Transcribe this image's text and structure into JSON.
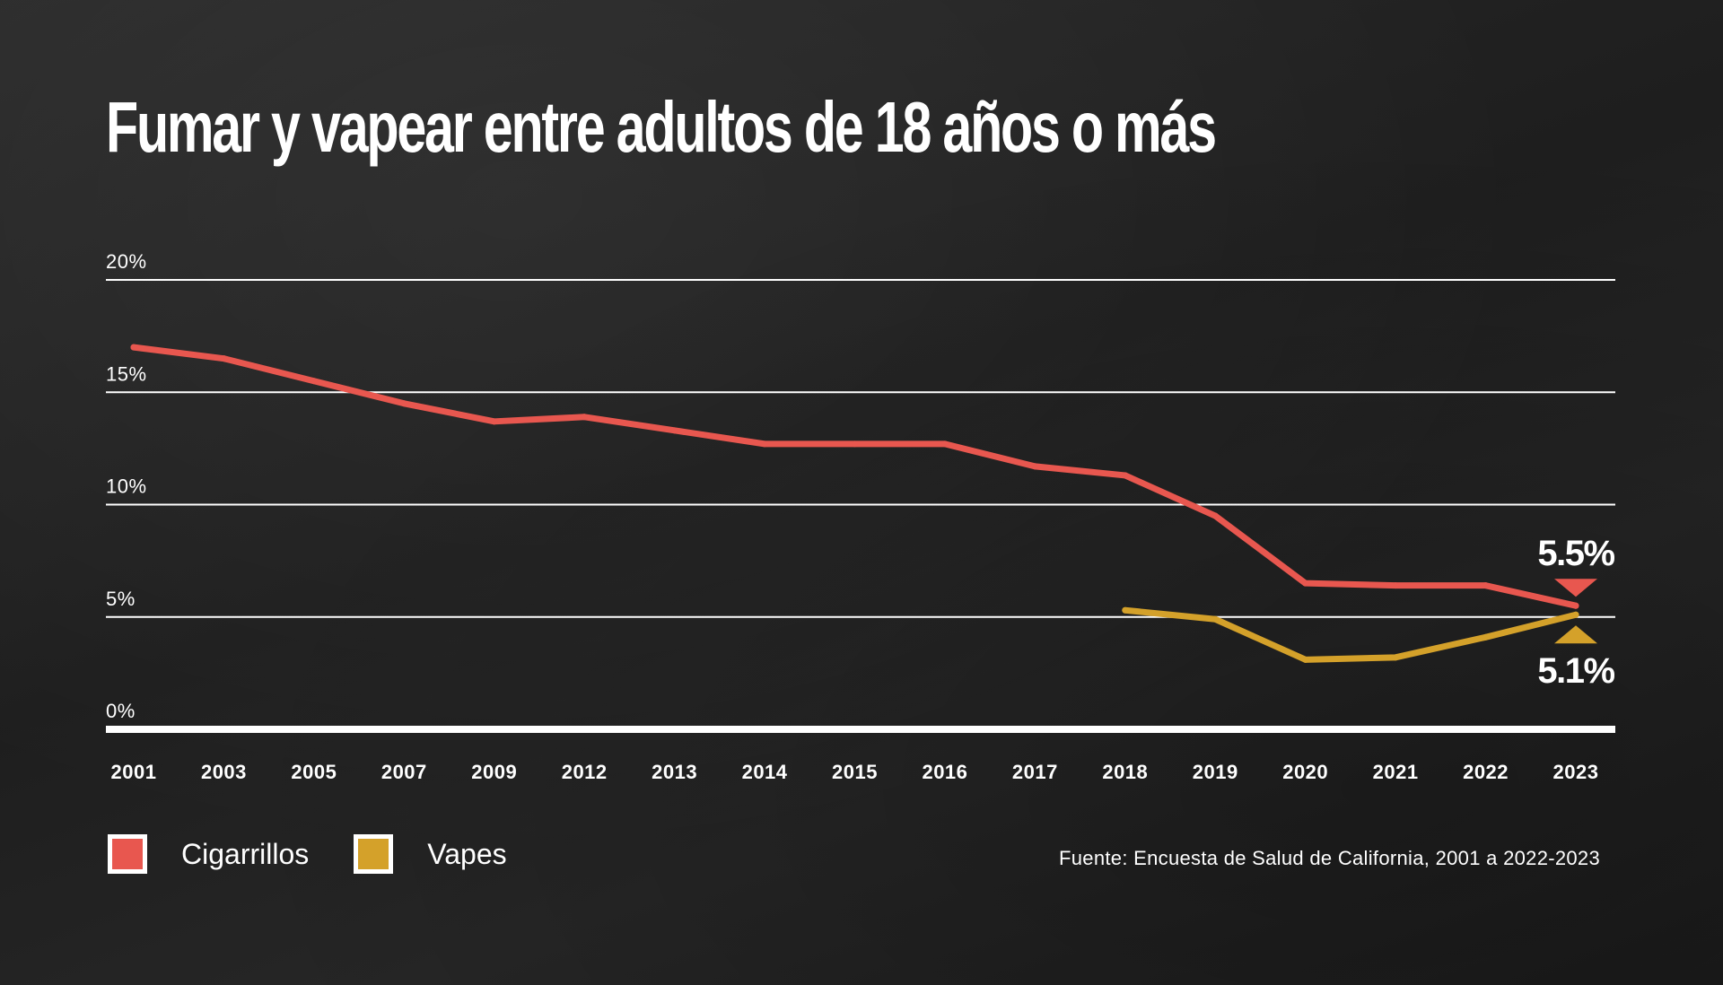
{
  "title": "Fumar y vapear entre adultos de 18 años o más",
  "source": "Fuente: Encuesta de Salud de California, 2001 a 2022-2023",
  "chart_data": {
    "type": "line",
    "categories": [
      "2001",
      "2003",
      "2005",
      "2007",
      "2009",
      "2012",
      "2013",
      "2014",
      "2015",
      "2016",
      "2017",
      "2018",
      "2019",
      "2020",
      "2021",
      "2022",
      "2023"
    ],
    "ylim": [
      0,
      20
    ],
    "yticks": [
      "0%",
      "5%",
      "10%",
      "15%",
      "20%"
    ],
    "ytick_values": [
      0,
      5,
      10,
      15,
      20
    ],
    "grid": true,
    "legend_position": "bottom-left",
    "series": [
      {
        "name": "Cigarrillos",
        "color": "#e8574f",
        "values": [
          17.0,
          16.5,
          15.5,
          14.5,
          13.7,
          13.9,
          13.3,
          12.7,
          12.7,
          12.7,
          11.7,
          11.3,
          9.5,
          6.5,
          6.4,
          6.4,
          5.5
        ]
      },
      {
        "name": "Vapes",
        "color": "#d4a12a",
        "values": [
          null,
          null,
          null,
          null,
          null,
          null,
          null,
          null,
          null,
          null,
          null,
          5.3,
          4.9,
          3.1,
          3.2,
          4.1,
          5.1
        ]
      }
    ],
    "annotations": [
      {
        "series": "Cigarrillos",
        "category": "2023",
        "text": "5.5%",
        "marker": "down-triangle"
      },
      {
        "series": "Vapes",
        "category": "2023",
        "text": "5.1%",
        "marker": "up-triangle"
      }
    ]
  }
}
